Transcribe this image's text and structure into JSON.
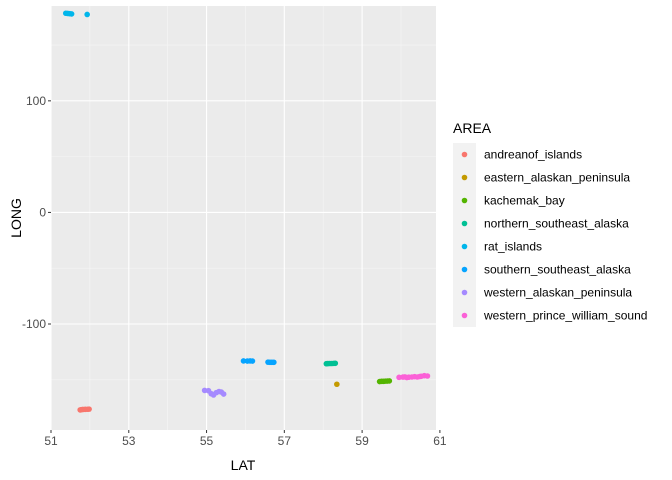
{
  "chart_data": {
    "type": "scatter",
    "xlabel": "LAT",
    "ylabel": "LONG",
    "xlim": [
      51.0,
      60.9
    ],
    "ylim": [
      -195,
      185
    ],
    "x_ticks": [
      51,
      53,
      55,
      57,
      59,
      61
    ],
    "x_tick_labels": [
      "51",
      "53",
      "55",
      "57",
      "59",
      "61"
    ],
    "y_ticks": [
      -100,
      0,
      100
    ],
    "y_tick_labels": [
      "-100",
      "0",
      "100"
    ],
    "grid": true,
    "legend": {
      "title": "AREA",
      "placement": "right"
    },
    "series": [
      {
        "name": "andreanof_islands",
        "color": "#F8766D",
        "points": [
          [
            51.75,
            -177
          ],
          [
            51.78,
            -176.8
          ],
          [
            51.82,
            -176.6
          ],
          [
            51.88,
            -176.5
          ],
          [
            51.94,
            -176.4
          ],
          [
            51.98,
            -176.3
          ]
        ]
      },
      {
        "name": "eastern_alaskan_peninsula",
        "color": "#C49A00",
        "points": [
          [
            58.35,
            -154
          ]
        ]
      },
      {
        "name": "kachemak_bay",
        "color": "#53B400",
        "points": [
          [
            59.45,
            -151.6
          ],
          [
            59.5,
            -151.4
          ],
          [
            59.55,
            -151.4
          ],
          [
            59.6,
            -151.2
          ],
          [
            59.65,
            -151.1
          ],
          [
            59.7,
            -151.0
          ]
        ]
      },
      {
        "name": "northern_southeast_alaska",
        "color": "#00C094",
        "points": [
          [
            58.08,
            -135.6
          ],
          [
            58.12,
            -135.5
          ],
          [
            58.17,
            -135.4
          ],
          [
            58.22,
            -135.4
          ],
          [
            58.27,
            -135.3
          ],
          [
            58.31,
            -135.2
          ]
        ]
      },
      {
        "name": "rat_islands",
        "color": "#00B6EB",
        "points": [
          [
            51.38,
            178.5
          ],
          [
            51.43,
            178.3
          ],
          [
            51.48,
            178.1
          ],
          [
            51.53,
            177.9
          ],
          [
            51.93,
            177.4
          ]
        ]
      },
      {
        "name": "southern_southeast_alaska",
        "color": "#06A4FF",
        "points": [
          [
            55.95,
            -133.1
          ],
          [
            56.05,
            -133.2
          ],
          [
            56.12,
            -133.1
          ],
          [
            56.18,
            -133.2
          ],
          [
            56.58,
            -134.2
          ],
          [
            56.63,
            -134.3
          ],
          [
            56.68,
            -134.3
          ],
          [
            56.73,
            -134.3
          ]
        ]
      },
      {
        "name": "western_alaskan_peninsula",
        "color": "#A58AFF",
        "points": [
          [
            54.95,
            -159.5
          ],
          [
            55.05,
            -159.8
          ],
          [
            55.12,
            -162.5
          ],
          [
            55.18,
            -163.6
          ],
          [
            55.25,
            -161.5
          ],
          [
            55.32,
            -160.5
          ],
          [
            55.38,
            -161.0
          ],
          [
            55.44,
            -162.8
          ]
        ]
      },
      {
        "name": "western_prince_william_sound",
        "color": "#FB61D7",
        "points": [
          [
            59.95,
            -147.8
          ],
          [
            60.05,
            -147.6
          ],
          [
            60.1,
            -147.4
          ],
          [
            60.15,
            -148.0
          ],
          [
            60.2,
            -147.7
          ],
          [
            60.28,
            -147.5
          ],
          [
            60.35,
            -147.2
          ],
          [
            60.42,
            -147.5
          ],
          [
            60.48,
            -147.1
          ],
          [
            60.52,
            -146.9
          ],
          [
            60.6,
            -146.3
          ],
          [
            60.68,
            -146.6
          ]
        ]
      }
    ]
  }
}
